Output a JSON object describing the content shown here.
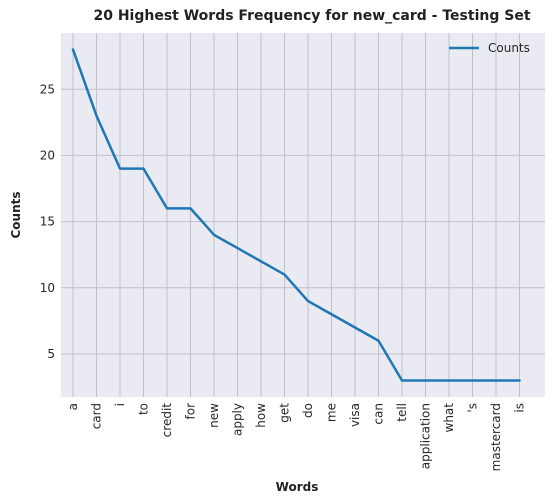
{
  "chart_data": {
    "type": "line",
    "title": "20 Highest Words Frequency for new_card - Testing Set",
    "xlabel": "Words",
    "ylabel": "Counts",
    "categories": [
      "a",
      "card",
      "i",
      "to",
      "credit",
      "for",
      "new",
      "apply",
      "how",
      "get",
      "do",
      "me",
      "visa",
      "can",
      "tell",
      "application",
      "what",
      "'s",
      "mastercard",
      "is"
    ],
    "series": [
      {
        "name": "Counts",
        "values": [
          28,
          23,
          19,
          19,
          16,
          16,
          14,
          13,
          12,
          11,
          9,
          8,
          7,
          6,
          3,
          3,
          3,
          3,
          3,
          3
        ]
      }
    ],
    "yticks": [
      5,
      10,
      15,
      20,
      25
    ],
    "ylim": [
      1.75,
      29.25
    ],
    "grid": true,
    "legend_position": "top-right",
    "colors": {
      "line": "#1f77b4",
      "plot_bg": "#eaeaf2",
      "grid": "#c0c0c8"
    }
  }
}
